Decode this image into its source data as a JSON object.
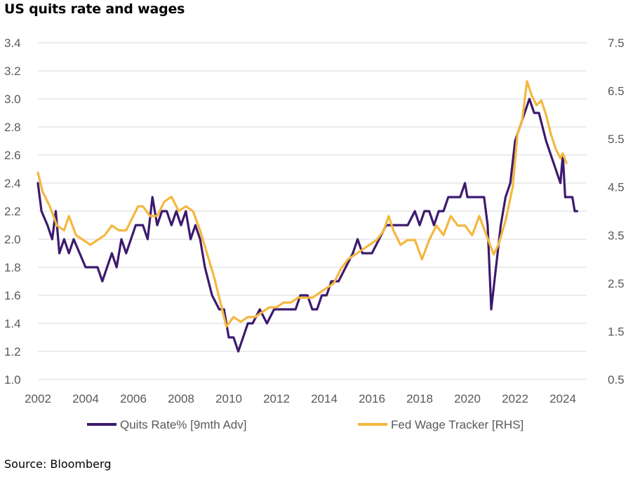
{
  "title": "US quits rate and wages",
  "source": "Source: Bloomberg",
  "colors": {
    "quits": "#3c1a6e",
    "wage": "#f4b73f",
    "grid": "#d9d9d9",
    "text": "#595959"
  },
  "chart_data": {
    "type": "line",
    "title": "US quits rate and wages",
    "xlabel": "",
    "ylabel": "",
    "xlim": [
      2002,
      2025
    ],
    "x_ticks": [
      "2002",
      "2004",
      "2006",
      "2008",
      "2010",
      "2012",
      "2014",
      "2016",
      "2018",
      "2020",
      "2022",
      "2024"
    ],
    "left_axis": {
      "ylim": [
        1.0,
        3.4
      ],
      "ticks": [
        "3.4",
        "3.2",
        "3.0",
        "2.8",
        "2.6",
        "2.4",
        "2.2",
        "2.0",
        "1.8",
        "1.6",
        "1.4",
        "1.2",
        "1.0"
      ]
    },
    "right_axis": {
      "ylim": [
        0.5,
        7.5
      ],
      "ticks": [
        "7.5",
        "6.5",
        "5.5",
        "4.5",
        "3.5",
        "2.5",
        "1.5",
        "0.5"
      ]
    },
    "grid": true,
    "legend_position": "bottom",
    "series": [
      {
        "name": "Quits Rate% [9mth Adv]",
        "axis": "left",
        "color": "#3c1a6e",
        "points": [
          [
            2002.0,
            2.4
          ],
          [
            2002.15,
            2.2
          ],
          [
            2002.4,
            2.1
          ],
          [
            2002.6,
            2.0
          ],
          [
            2002.75,
            2.2
          ],
          [
            2002.9,
            1.9
          ],
          [
            2003.1,
            2.0
          ],
          [
            2003.3,
            1.9
          ],
          [
            2003.5,
            2.0
          ],
          [
            2003.75,
            1.9
          ],
          [
            2004.0,
            1.8
          ],
          [
            2004.3,
            1.8
          ],
          [
            2004.5,
            1.8
          ],
          [
            2004.7,
            1.7
          ],
          [
            2004.9,
            1.8
          ],
          [
            2005.1,
            1.9
          ],
          [
            2005.3,
            1.8
          ],
          [
            2005.5,
            2.0
          ],
          [
            2005.7,
            1.9
          ],
          [
            2005.9,
            2.0
          ],
          [
            2006.1,
            2.1
          ],
          [
            2006.4,
            2.1
          ],
          [
            2006.6,
            2.0
          ],
          [
            2006.8,
            2.3
          ],
          [
            2007.0,
            2.1
          ],
          [
            2007.2,
            2.2
          ],
          [
            2007.4,
            2.2
          ],
          [
            2007.6,
            2.1
          ],
          [
            2007.8,
            2.2
          ],
          [
            2008.0,
            2.1
          ],
          [
            2008.2,
            2.2
          ],
          [
            2008.4,
            2.0
          ],
          [
            2008.6,
            2.1
          ],
          [
            2008.8,
            2.0
          ],
          [
            2009.0,
            1.8
          ],
          [
            2009.3,
            1.6
          ],
          [
            2009.6,
            1.5
          ],
          [
            2009.8,
            1.5
          ],
          [
            2010.0,
            1.3
          ],
          [
            2010.2,
            1.3
          ],
          [
            2010.4,
            1.2
          ],
          [
            2010.6,
            1.3
          ],
          [
            2010.8,
            1.4
          ],
          [
            2011.0,
            1.4
          ],
          [
            2011.3,
            1.5
          ],
          [
            2011.6,
            1.4
          ],
          [
            2011.9,
            1.5
          ],
          [
            2012.2,
            1.5
          ],
          [
            2012.5,
            1.5
          ],
          [
            2012.8,
            1.5
          ],
          [
            2013.0,
            1.6
          ],
          [
            2013.3,
            1.6
          ],
          [
            2013.5,
            1.5
          ],
          [
            2013.7,
            1.5
          ],
          [
            2013.9,
            1.6
          ],
          [
            2014.1,
            1.6
          ],
          [
            2014.3,
            1.7
          ],
          [
            2014.6,
            1.7
          ],
          [
            2014.9,
            1.8
          ],
          [
            2015.2,
            1.9
          ],
          [
            2015.4,
            2.0
          ],
          [
            2015.6,
            1.9
          ],
          [
            2015.8,
            1.9
          ],
          [
            2016.0,
            1.9
          ],
          [
            2016.3,
            2.0
          ],
          [
            2016.6,
            2.1
          ],
          [
            2016.9,
            2.1
          ],
          [
            2017.2,
            2.1
          ],
          [
            2017.5,
            2.1
          ],
          [
            2017.8,
            2.2
          ],
          [
            2018.0,
            2.1
          ],
          [
            2018.2,
            2.2
          ],
          [
            2018.4,
            2.2
          ],
          [
            2018.6,
            2.1
          ],
          [
            2018.8,
            2.2
          ],
          [
            2019.0,
            2.2
          ],
          [
            2019.2,
            2.3
          ],
          [
            2019.5,
            2.3
          ],
          [
            2019.7,
            2.3
          ],
          [
            2019.9,
            2.4
          ],
          [
            2020.0,
            2.3
          ],
          [
            2020.2,
            2.3
          ],
          [
            2020.5,
            2.3
          ],
          [
            2020.7,
            2.3
          ],
          [
            2020.85,
            2.1
          ],
          [
            2021.0,
            1.5
          ],
          [
            2021.2,
            1.8
          ],
          [
            2021.4,
            2.1
          ],
          [
            2021.6,
            2.3
          ],
          [
            2021.8,
            2.4
          ],
          [
            2022.0,
            2.7
          ],
          [
            2022.2,
            2.8
          ],
          [
            2022.4,
            2.9
          ],
          [
            2022.6,
            3.0
          ],
          [
            2022.8,
            2.9
          ],
          [
            2023.0,
            2.9
          ],
          [
            2023.15,
            2.8
          ],
          [
            2023.3,
            2.7
          ],
          [
            2023.5,
            2.6
          ],
          [
            2023.7,
            2.5
          ],
          [
            2023.9,
            2.4
          ],
          [
            2024.0,
            2.6
          ],
          [
            2024.1,
            2.3
          ],
          [
            2024.4,
            2.3
          ],
          [
            2024.5,
            2.2
          ],
          [
            2024.6,
            2.2
          ]
        ]
      },
      {
        "name": "Fed Wage Tracker [RHS]",
        "axis": "right",
        "color": "#f4b73f",
        "points": [
          [
            2002.0,
            4.8
          ],
          [
            2002.2,
            4.4
          ],
          [
            2002.5,
            4.1
          ],
          [
            2002.8,
            3.7
          ],
          [
            2003.1,
            3.6
          ],
          [
            2003.3,
            3.9
          ],
          [
            2003.6,
            3.5
          ],
          [
            2003.9,
            3.4
          ],
          [
            2004.2,
            3.3
          ],
          [
            2004.5,
            3.4
          ],
          [
            2004.8,
            3.5
          ],
          [
            2005.1,
            3.7
          ],
          [
            2005.4,
            3.6
          ],
          [
            2005.7,
            3.6
          ],
          [
            2005.9,
            3.8
          ],
          [
            2006.2,
            4.1
          ],
          [
            2006.4,
            4.1
          ],
          [
            2006.7,
            3.9
          ],
          [
            2007.0,
            3.9
          ],
          [
            2007.3,
            4.2
          ],
          [
            2007.6,
            4.3
          ],
          [
            2007.9,
            4.0
          ],
          [
            2008.2,
            4.1
          ],
          [
            2008.5,
            4.0
          ],
          [
            2008.8,
            3.6
          ],
          [
            2009.1,
            3.1
          ],
          [
            2009.4,
            2.6
          ],
          [
            2009.7,
            2.0
          ],
          [
            2009.9,
            1.6
          ],
          [
            2010.2,
            1.8
          ],
          [
            2010.5,
            1.7
          ],
          [
            2010.8,
            1.8
          ],
          [
            2011.1,
            1.8
          ],
          [
            2011.4,
            1.9
          ],
          [
            2011.7,
            2.0
          ],
          [
            2012.0,
            2.0
          ],
          [
            2012.3,
            2.1
          ],
          [
            2012.6,
            2.1
          ],
          [
            2012.9,
            2.2
          ],
          [
            2013.2,
            2.2
          ],
          [
            2013.5,
            2.2
          ],
          [
            2013.8,
            2.3
          ],
          [
            2014.1,
            2.4
          ],
          [
            2014.4,
            2.5
          ],
          [
            2014.7,
            2.8
          ],
          [
            2015.0,
            3.0
          ],
          [
            2015.3,
            3.1
          ],
          [
            2015.6,
            3.2
          ],
          [
            2015.9,
            3.3
          ],
          [
            2016.2,
            3.4
          ],
          [
            2016.5,
            3.6
          ],
          [
            2016.7,
            3.9
          ],
          [
            2016.9,
            3.6
          ],
          [
            2017.2,
            3.3
          ],
          [
            2017.5,
            3.4
          ],
          [
            2017.8,
            3.4
          ],
          [
            2018.1,
            3.0
          ],
          [
            2018.4,
            3.4
          ],
          [
            2018.7,
            3.7
          ],
          [
            2019.0,
            3.5
          ],
          [
            2019.3,
            3.9
          ],
          [
            2019.6,
            3.7
          ],
          [
            2019.9,
            3.7
          ],
          [
            2020.2,
            3.5
          ],
          [
            2020.5,
            3.9
          ],
          [
            2020.8,
            3.5
          ],
          [
            2021.1,
            3.1
          ],
          [
            2021.3,
            3.3
          ],
          [
            2021.6,
            3.8
          ],
          [
            2021.9,
            4.5
          ],
          [
            2022.1,
            5.6
          ],
          [
            2022.3,
            5.9
          ],
          [
            2022.5,
            6.7
          ],
          [
            2022.7,
            6.4
          ],
          [
            2022.9,
            6.2
          ],
          [
            2023.1,
            6.3
          ],
          [
            2023.3,
            6.0
          ],
          [
            2023.5,
            5.6
          ],
          [
            2023.7,
            5.3
          ],
          [
            2023.9,
            5.1
          ],
          [
            2024.0,
            5.2
          ],
          [
            2024.15,
            5.0
          ]
        ]
      }
    ]
  }
}
